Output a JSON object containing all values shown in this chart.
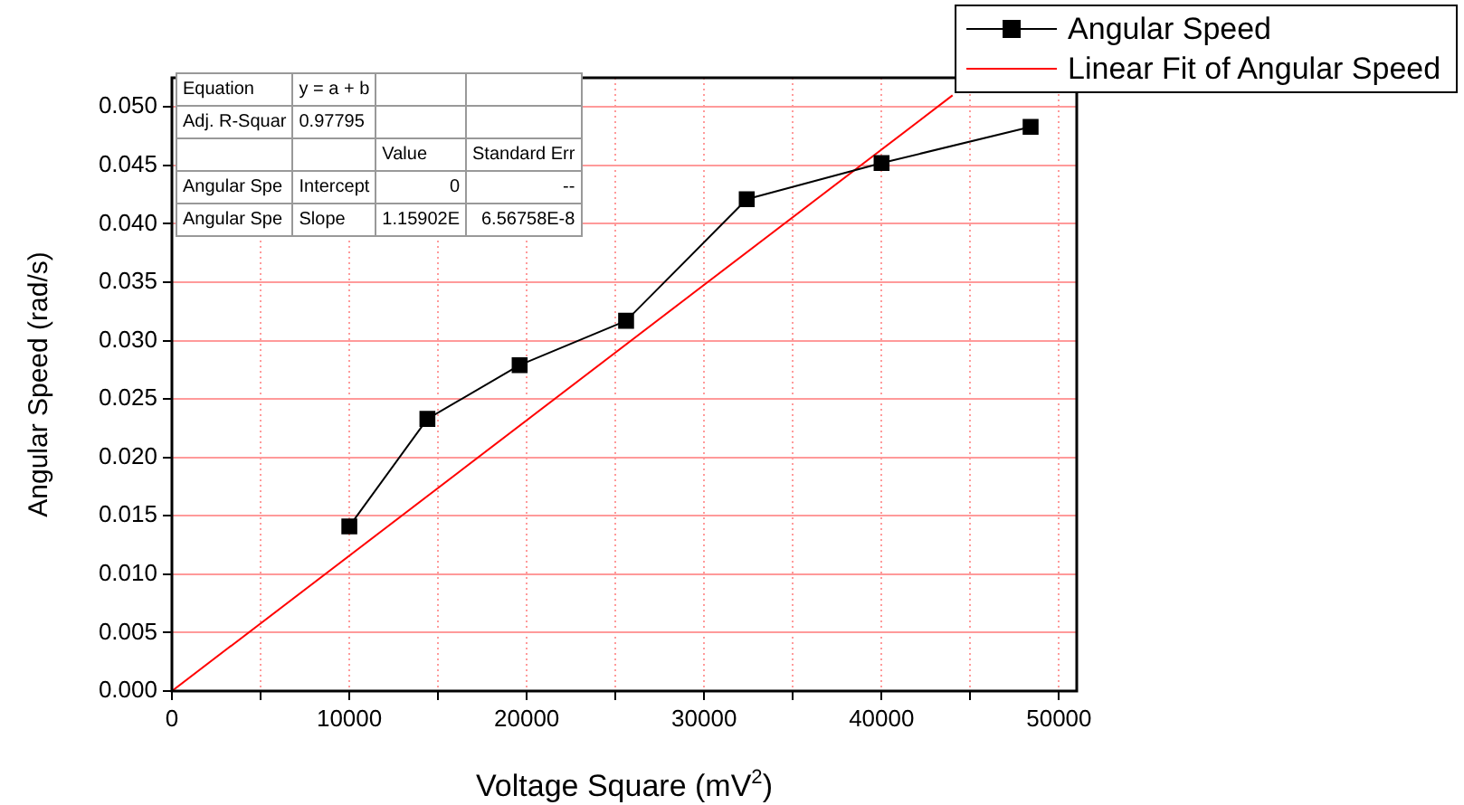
{
  "chart_data": {
    "type": "line",
    "xlabel": "Voltage Square (mV$^{2}$)",
    "ylabel": "Angular Speed (rad/s)",
    "xlim": [
      0,
      51000
    ],
    "ylim": [
      0,
      0.0525
    ],
    "xticks": [
      0,
      {
        "value": 5000,
        "label": null
      },
      10000,
      {
        "value": 15000,
        "label": null
      },
      20000,
      {
        "value": 25000,
        "label": null
      },
      30000,
      {
        "value": 35000,
        "label": null
      },
      40000,
      {
        "value": 45000,
        "label": null
      },
      50000
    ],
    "yticks": [
      {
        "value": 0,
        "label": "0.000"
      },
      0.005,
      {
        "value": 0.01,
        "label": "0.010"
      },
      0.015,
      {
        "value": 0.02,
        "label": "0.020"
      },
      0.025,
      {
        "value": 0.03,
        "label": "0.030"
      },
      0.035,
      {
        "value": 0.04,
        "label": "0.040"
      },
      0.045,
      {
        "value": 0.05,
        "label": "0.050"
      }
    ],
    "grid": true,
    "legend": "top right",
    "marker": "square",
    "line_style": "solid",
    "series": [
      {
        "name": "Angular Speed",
        "color": "#000000",
        "x": [
          10000,
          14400,
          19600,
          25600,
          32400,
          40000,
          48400
        ],
        "values": [
          0.0141,
          0.0233,
          0.0279,
          0.0317,
          0.0421,
          0.0452,
          0.0483
        ]
      },
      {
        "name": "Linear Fit of Angular Speed",
        "color": "#ff0000",
        "marker": "none",
        "x": [
          0,
          44000
        ],
        "values": [
          0,
          0.051
        ]
      }
    ],
    "annotations": [
      "Equation",
      "y = a + b",
      null,
      null,
      "Adj. R-Squar",
      "0.97795",
      null,
      null,
      null,
      null,
      "Value",
      "Standard Err",
      "Angular Spe",
      "Intercept",
      "0",
      "--",
      "Angular Spe",
      "Slope",
      "1.15902E",
      "6.56758E-8"
    ]
  }
}
